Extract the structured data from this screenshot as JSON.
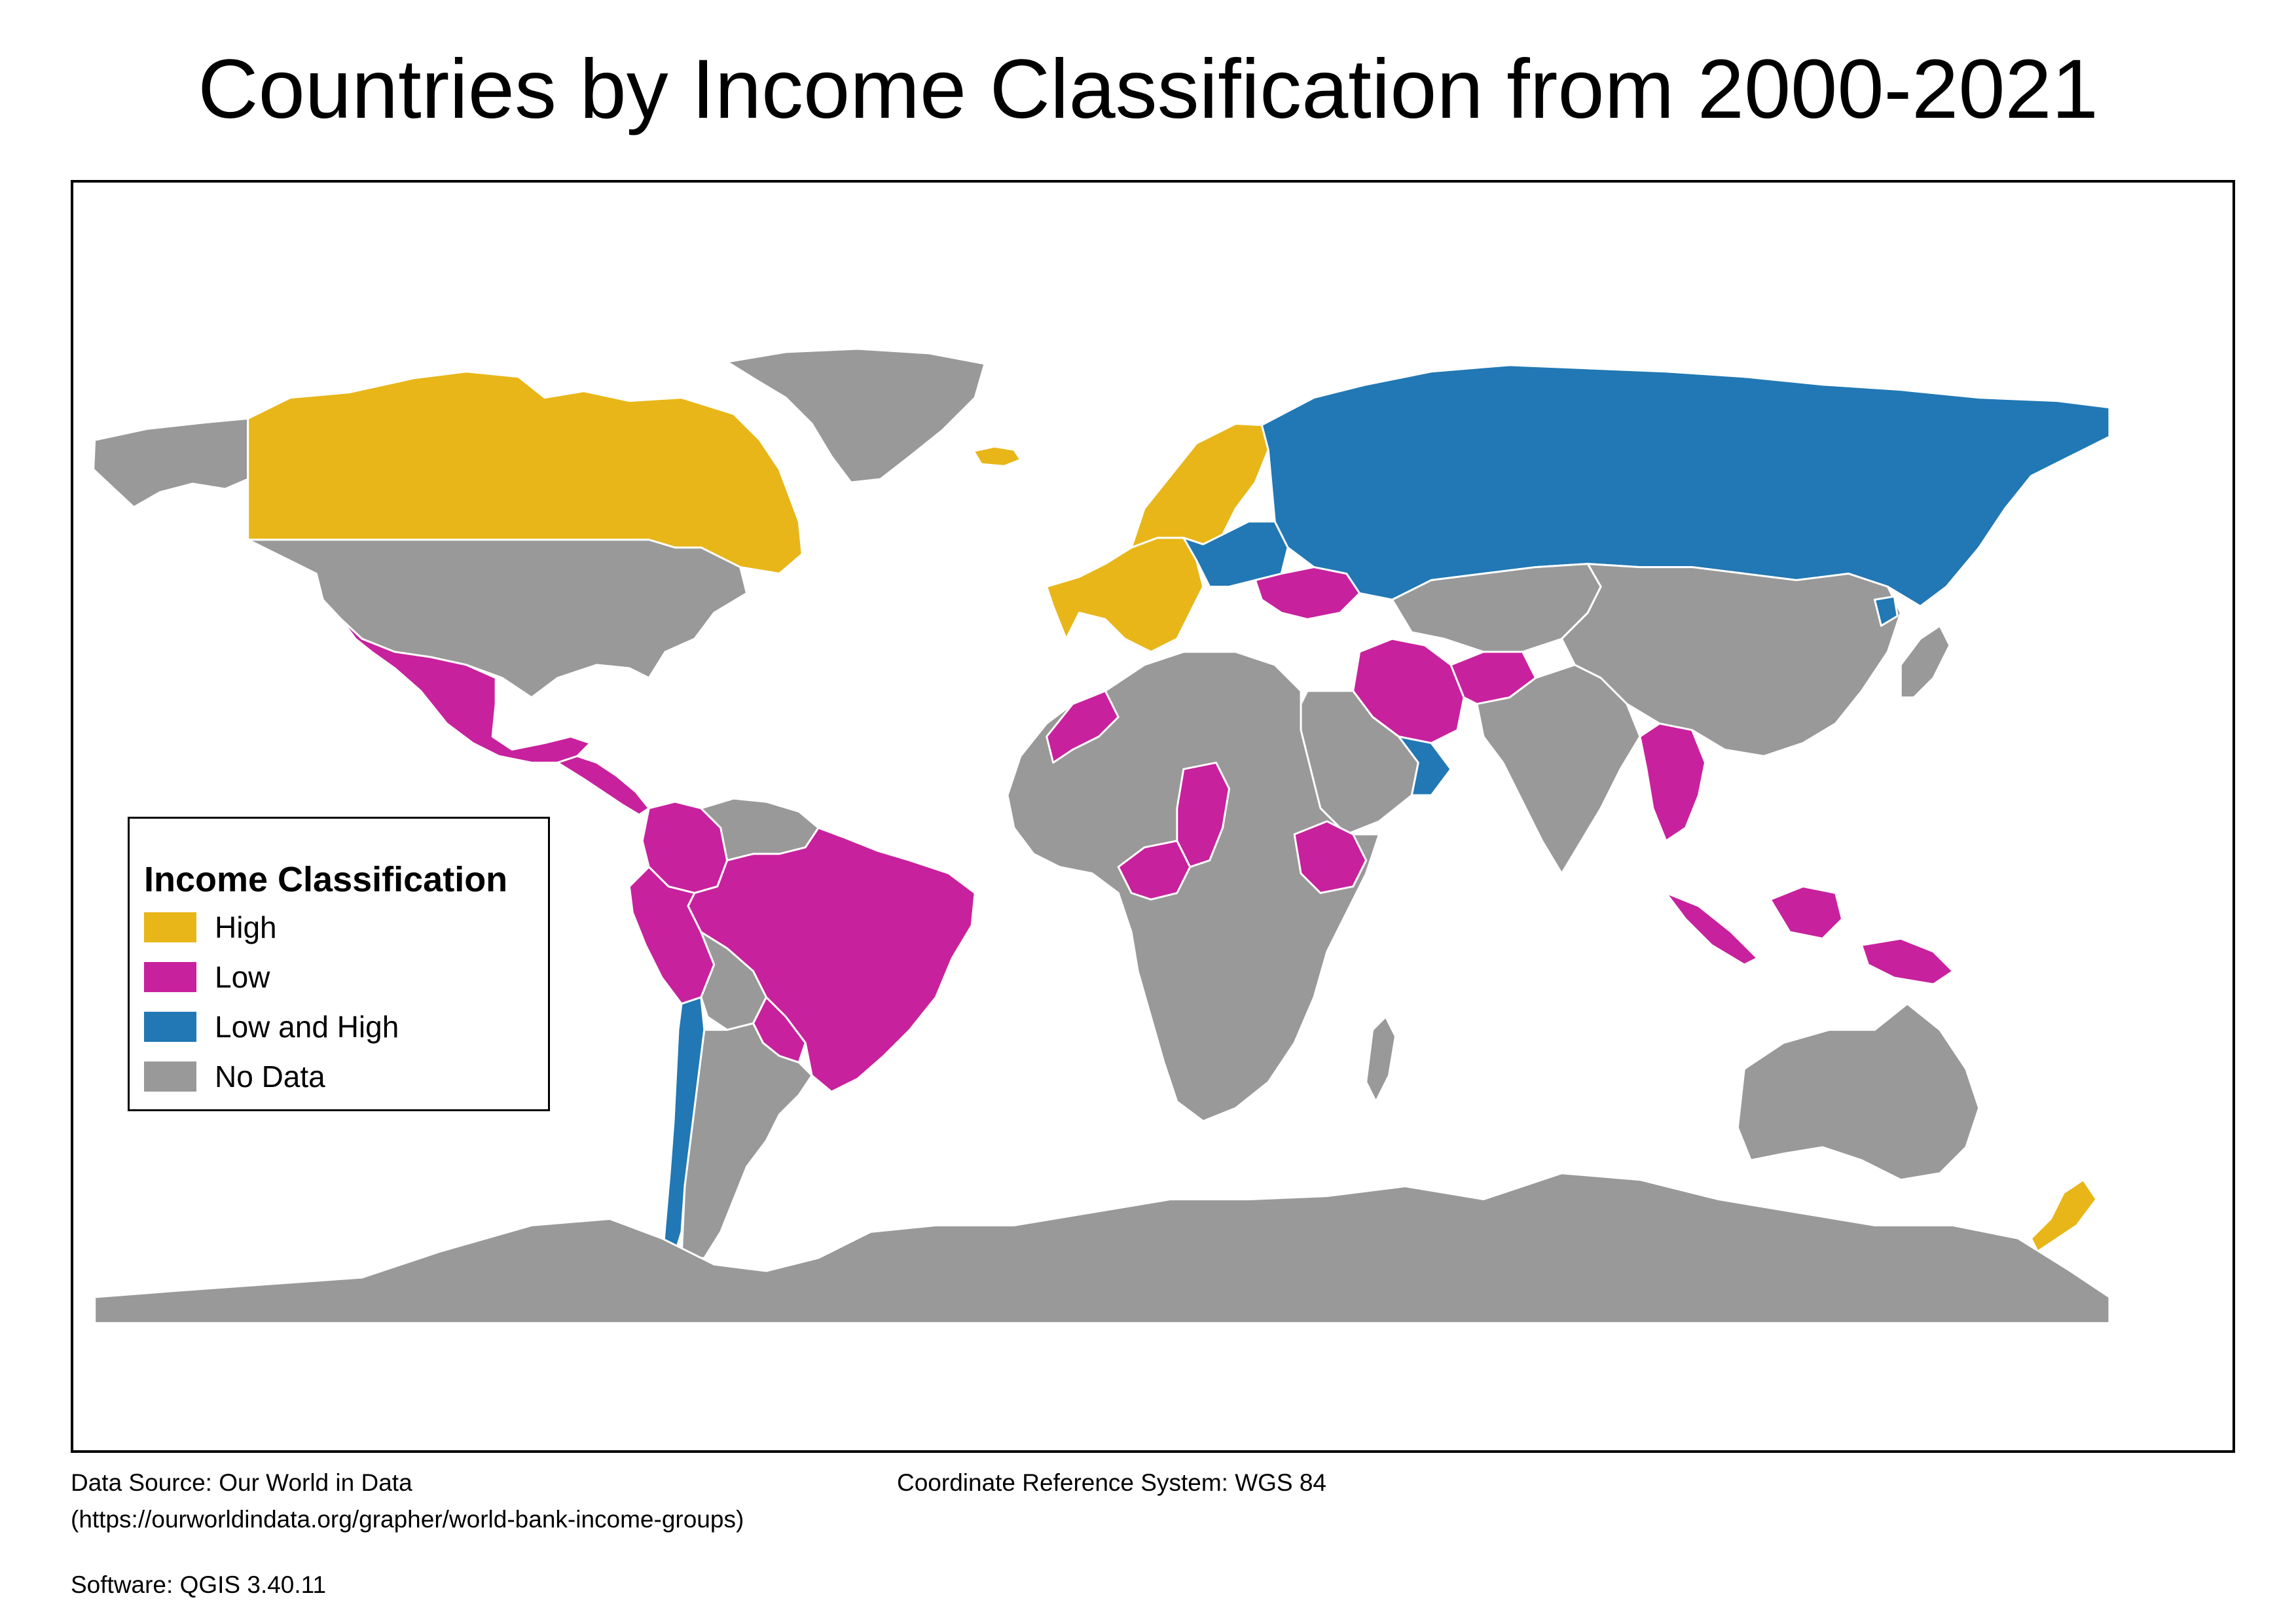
{
  "title": "Countries by Income Classification from 2000-2021",
  "legend": {
    "title": "Income Classification",
    "items": [
      {
        "label": "High",
        "color": "#e8b619"
      },
      {
        "label": "Low",
        "color": "#c8219d"
      },
      {
        "label": "Low and High",
        "color": "#2178b4"
      },
      {
        "label": "No Data",
        "color": "#999999"
      }
    ]
  },
  "colors": {
    "high": "#e8b619",
    "low": "#c8219d",
    "low_and_high": "#2178b4",
    "no_data": "#999999",
    "border": "#ffffff"
  },
  "regions": [
    {
      "name": "Alaska",
      "class": "no_data"
    },
    {
      "name": "Canada",
      "class": "high"
    },
    {
      "name": "Greenland",
      "class": "no_data"
    },
    {
      "name": "Iceland",
      "class": "high"
    },
    {
      "name": "United States",
      "class": "no_data"
    },
    {
      "name": "Mexico",
      "class": "low"
    },
    {
      "name": "Central America",
      "class": "low"
    },
    {
      "name": "Colombia",
      "class": "low"
    },
    {
      "name": "Venezuela",
      "class": "no_data"
    },
    {
      "name": "Brazil",
      "class": "low"
    },
    {
      "name": "Peru",
      "class": "low"
    },
    {
      "name": "Bolivia",
      "class": "no_data"
    },
    {
      "name": "Paraguay",
      "class": "low"
    },
    {
      "name": "Chile",
      "class": "low_and_high"
    },
    {
      "name": "Argentina",
      "class": "no_data"
    },
    {
      "name": "Western Europe",
      "class": "high"
    },
    {
      "name": "Scandinavia",
      "class": "high"
    },
    {
      "name": "Eastern Europe",
      "class": "low_and_high"
    },
    {
      "name": "Ukraine",
      "class": "low"
    },
    {
      "name": "Russia",
      "class": "low_and_high"
    },
    {
      "name": "Kazakhstan",
      "class": "no_data"
    },
    {
      "name": "China",
      "class": "no_data"
    },
    {
      "name": "Iran",
      "class": "low"
    },
    {
      "name": "Afghanistan",
      "class": "low"
    },
    {
      "name": "Arabian Peninsula",
      "class": "no_data"
    },
    {
      "name": "Oman",
      "class": "low_and_high"
    },
    {
      "name": "India",
      "class": "no_data"
    },
    {
      "name": "Myanmar",
      "class": "low"
    },
    {
      "name": "Indonesia",
      "class": "low"
    },
    {
      "name": "Africa",
      "class": "no_data"
    },
    {
      "name": "Morocco",
      "class": "low"
    },
    {
      "name": "Nigeria",
      "class": "low"
    },
    {
      "name": "Chad",
      "class": "low"
    },
    {
      "name": "Ethiopia",
      "class": "low"
    },
    {
      "name": "Madagascar",
      "class": "no_data"
    },
    {
      "name": "Australia",
      "class": "no_data"
    },
    {
      "name": "New Zealand",
      "class": "high"
    },
    {
      "name": "Japan",
      "class": "no_data"
    },
    {
      "name": "South Korea",
      "class": "low_and_high"
    },
    {
      "name": "Antarctica",
      "class": "no_data"
    }
  ],
  "footer": {
    "source_line1": "Data Source: Our World in Data",
    "source_line2": "(https://ourworldindata.org/grapher/world-bank-income-groups)",
    "software": "Software: QGIS 3.40.11",
    "crs": "Coordinate Reference System: WGS 84"
  }
}
